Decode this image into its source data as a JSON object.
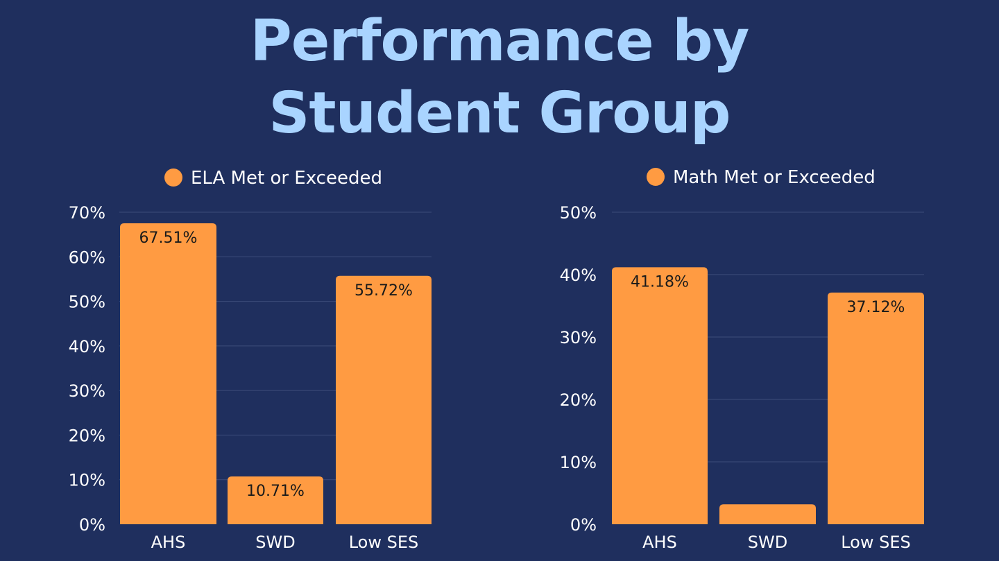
{
  "slide": {
    "title_line1": "Performance by",
    "title_line2": "Student Group"
  },
  "colors": {
    "background": "#1f2f5e",
    "title": "#a9d4ff",
    "bar": "#ff9b42",
    "gridline": "#3d4c7a",
    "text": "#ffffff",
    "data_label": "#1a1a1a"
  },
  "chart_data": [
    {
      "type": "bar",
      "title": "",
      "xlabel": "",
      "ylabel": "",
      "categories": [
        "AHS",
        "SWD",
        "Low SES"
      ],
      "series": [
        {
          "name": "ELA Met or Exceeded",
          "values": [
            67.51,
            10.71,
            55.72
          ]
        }
      ],
      "data_labels": [
        "67.51%",
        "10.71%",
        "55.72%"
      ],
      "ylim": [
        0,
        70
      ],
      "yticks": [
        0,
        10,
        20,
        30,
        40,
        50,
        60,
        70
      ],
      "ytick_labels": [
        "0%",
        "10%",
        "20%",
        "30%",
        "40%",
        "50%",
        "60%",
        "70%"
      ],
      "grid": true,
      "legend_position": "top-center"
    },
    {
      "type": "bar",
      "title": "",
      "xlabel": "",
      "ylabel": "",
      "categories": [
        "AHS",
        "SWD",
        "Low SES"
      ],
      "series": [
        {
          "name": "Math Met or Exceeded",
          "values": [
            41.18,
            3.2,
            37.12
          ]
        }
      ],
      "data_labels": [
        "41.18%",
        "",
        "37.12%"
      ],
      "ylim": [
        0,
        50
      ],
      "yticks": [
        0,
        10,
        20,
        30,
        40,
        50
      ],
      "ytick_labels": [
        "0%",
        "10%",
        "20%",
        "30%",
        "40%",
        "50%"
      ],
      "grid": true,
      "legend_position": "top-center"
    }
  ]
}
